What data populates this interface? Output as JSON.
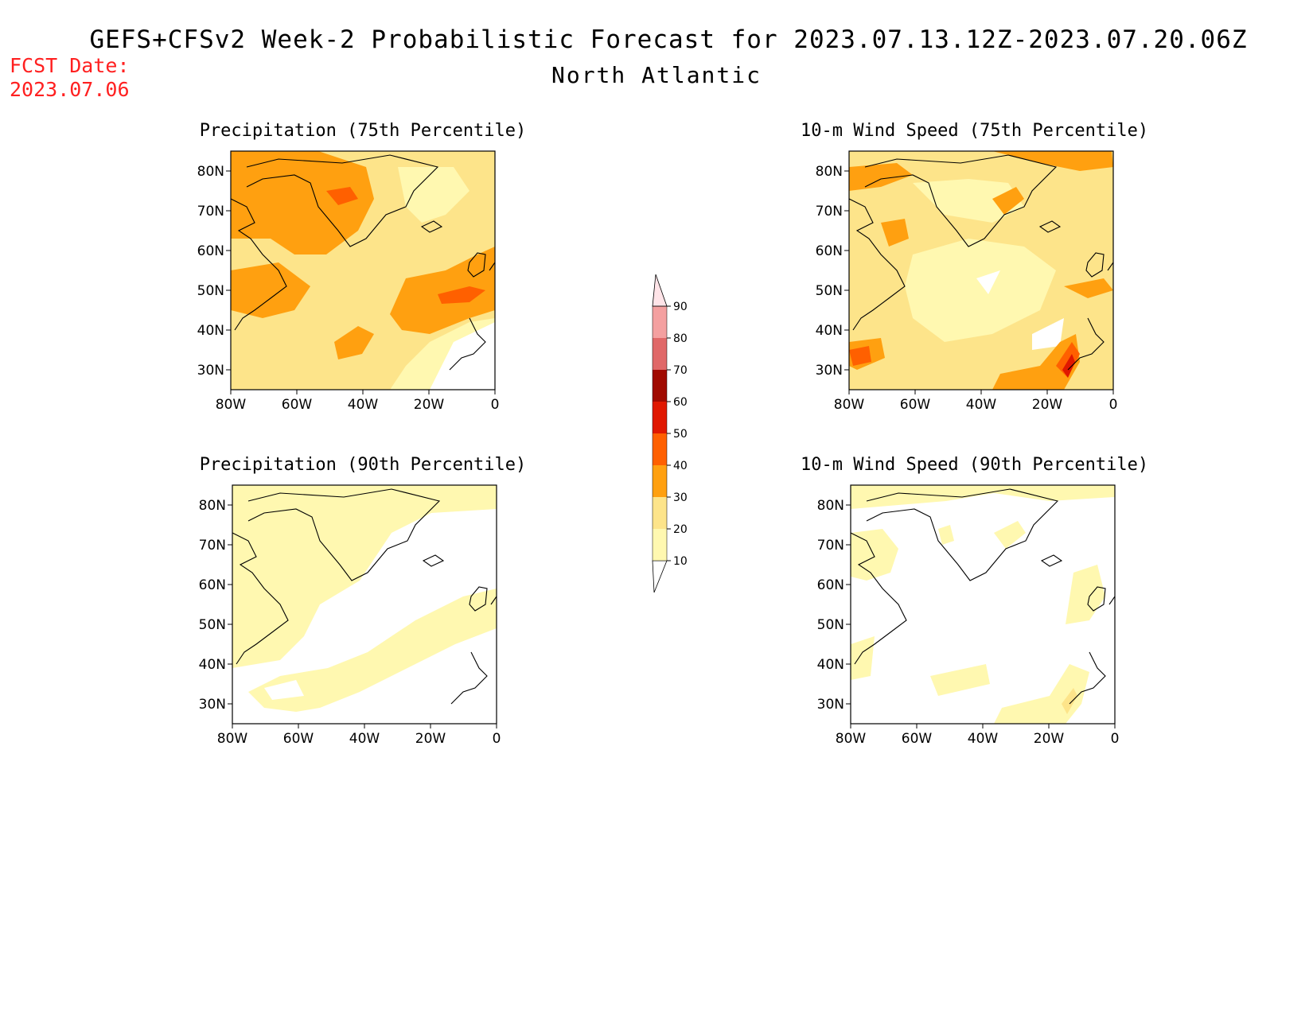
{
  "header": {
    "title": "GEFS+CFSv2 Week-2 Probabilistic Forecast for 2023.07.13.12Z-2023.07.20.06Z",
    "subtitle": "North Atlantic",
    "fcst_label": "FCST Date:",
    "fcst_value": "2023.07.06"
  },
  "colors": {
    "c10": "#fff8b0",
    "c20": "#fde48a",
    "c30": "#ffa010",
    "c40": "#ff6000",
    "c50": "#e01800",
    "c60": "#a00a00",
    "c70": "#e06868",
    "c80": "#f4a0a0",
    "c90": "#ffe4e8"
  },
  "colorbar": {
    "levels": [
      "10",
      "20",
      "30",
      "40",
      "50",
      "60",
      "70",
      "80",
      "90"
    ]
  },
  "axes": {
    "lat_labels": [
      "80N",
      "70N",
      "60N",
      "50N",
      "40N",
      "30N"
    ],
    "lon_labels": [
      "80W",
      "60W",
      "40W",
      "20W",
      "0"
    ]
  },
  "panels": [
    {
      "id": "precip75",
      "title": "Precipitation (75th Percentile)"
    },
    {
      "id": "wind75",
      "title": "10-m Wind Speed (75th Percentile)"
    },
    {
      "id": "precip90",
      "title": "Precipitation (90th Percentile)"
    },
    {
      "id": "wind90",
      "title": "10-m Wind Speed (90th Percentile)"
    }
  ]
}
